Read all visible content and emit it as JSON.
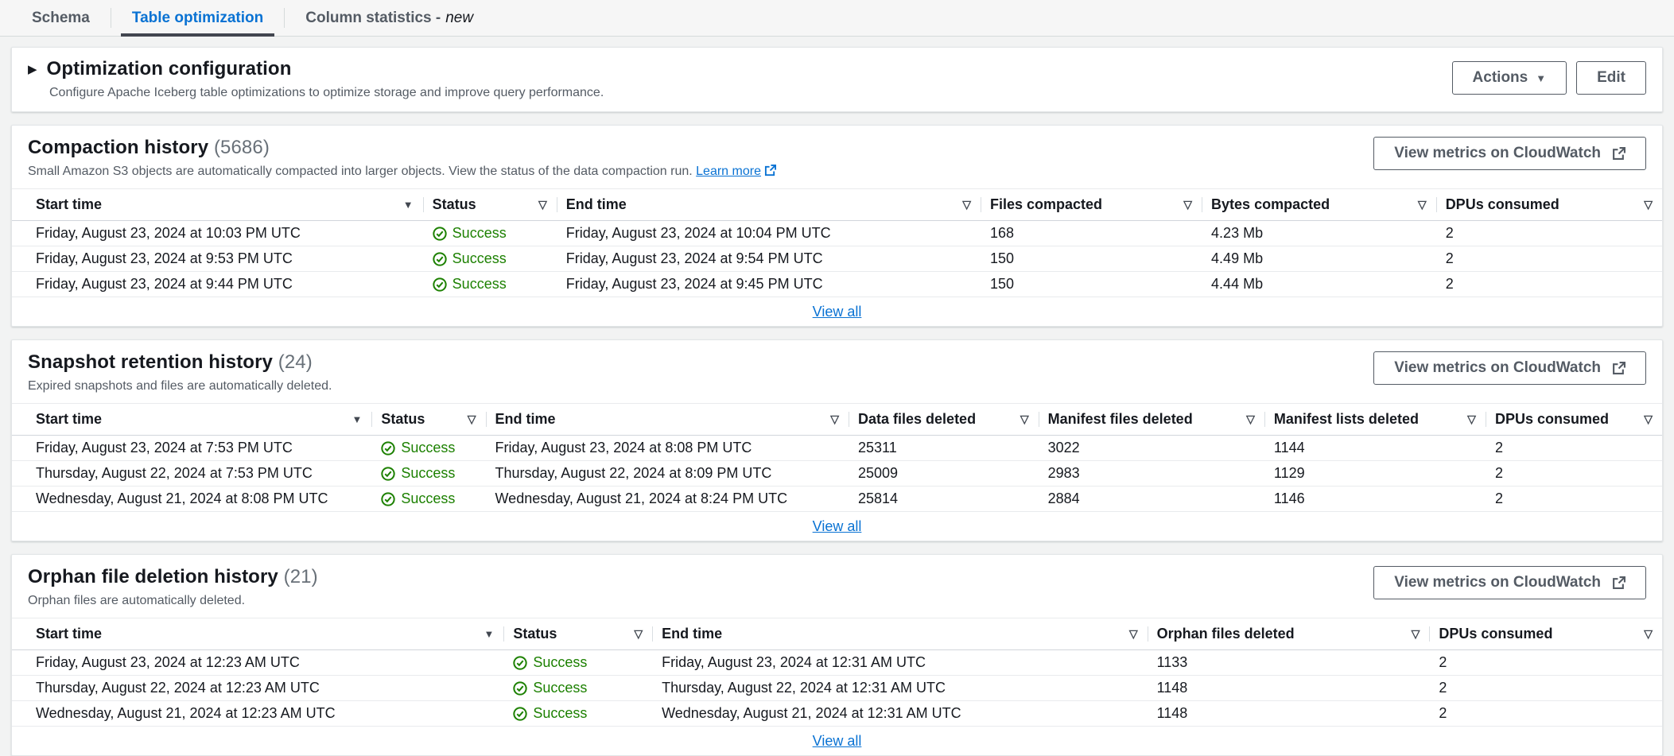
{
  "tabs": [
    {
      "label": "Schema"
    },
    {
      "label": "Table optimization"
    },
    {
      "label": "Column statistics -",
      "suffix": "new"
    }
  ],
  "config": {
    "title": "Optimization configuration",
    "description": "Configure Apache Iceberg table optimizations to optimize storage and improve query performance.",
    "actions_label": "Actions",
    "edit_label": "Edit"
  },
  "metrics_button_label": "View metrics on CloudWatch",
  "view_all_label": "View all",
  "colors": {
    "link_blue": "#0972d3",
    "success_green": "#1d8102",
    "active_tab_underline": "#424650"
  },
  "sections": [
    {
      "title": "Compaction history",
      "count": "(5686)",
      "description": "Small Amazon S3 objects are automatically compacted into larger objects. View the status of the data compaction run.",
      "learn_more_label": "Learn more",
      "columns": [
        {
          "label": "Start time",
          "indicator": "sort-desc"
        },
        {
          "label": "Status",
          "indicator": "filter"
        },
        {
          "label": "End time",
          "indicator": "filter"
        },
        {
          "label": "Files compacted",
          "indicator": "filter"
        },
        {
          "label": "Bytes compacted",
          "indicator": "filter"
        },
        {
          "label": "DPUs consumed",
          "indicator": "filter"
        }
      ],
      "rows": [
        [
          "Friday, August 23, 2024 at 10:03 PM UTC",
          "Success",
          "Friday, August 23, 2024 at 10:04 PM UTC",
          "168",
          "4.23 Mb",
          "2"
        ],
        [
          "Friday, August 23, 2024 at 9:53 PM UTC",
          "Success",
          "Friday, August 23, 2024 at 9:54 PM UTC",
          "150",
          "4.49 Mb",
          "2"
        ],
        [
          "Friday, August 23, 2024 at 9:44 PM UTC",
          "Success",
          "Friday, August 23, 2024 at 9:45 PM UTC",
          "150",
          "4.44 Mb",
          "2"
        ]
      ]
    },
    {
      "title": "Snapshot retention history",
      "count": "(24)",
      "description": "Expired snapshots and files are automatically deleted.",
      "columns": [
        {
          "label": "Start time",
          "indicator": "sort-desc"
        },
        {
          "label": "Status",
          "indicator": "filter"
        },
        {
          "label": "End time",
          "indicator": "filter"
        },
        {
          "label": "Data files deleted",
          "indicator": "filter"
        },
        {
          "label": "Manifest files deleted",
          "indicator": "filter"
        },
        {
          "label": "Manifest lists deleted",
          "indicator": "filter"
        },
        {
          "label": "DPUs consumed",
          "indicator": "filter"
        }
      ],
      "rows": [
        [
          "Friday, August 23, 2024 at 7:53 PM UTC",
          "Success",
          "Friday, August 23, 2024 at 8:08 PM UTC",
          "25311",
          "3022",
          "1144",
          "2"
        ],
        [
          "Thursday, August 22, 2024 at 7:53 PM UTC",
          "Success",
          "Thursday, August 22, 2024 at 8:09 PM UTC",
          "25009",
          "2983",
          "1129",
          "2"
        ],
        [
          "Wednesday, August 21, 2024 at 8:08 PM UTC",
          "Success",
          "Wednesday, August 21, 2024 at 8:24 PM UTC",
          "25814",
          "2884",
          "1146",
          "2"
        ]
      ]
    },
    {
      "title": "Orphan file deletion history",
      "count": "(21)",
      "description": "Orphan files are automatically deleted.",
      "columns": [
        {
          "label": "Start time",
          "indicator": "sort-desc"
        },
        {
          "label": "Status",
          "indicator": "filter"
        },
        {
          "label": "End time",
          "indicator": "filter"
        },
        {
          "label": "Orphan files deleted",
          "indicator": "filter"
        },
        {
          "label": "DPUs consumed",
          "indicator": "filter"
        }
      ],
      "rows": [
        [
          "Friday, August 23, 2024 at 12:23 AM UTC",
          "Success",
          "Friday, August 23, 2024 at 12:31 AM UTC",
          "1133",
          "2"
        ],
        [
          "Thursday, August 22, 2024 at 12:23 AM UTC",
          "Success",
          "Thursday, August 22, 2024 at 12:31 AM UTC",
          "1148",
          "2"
        ],
        [
          "Wednesday, August 21, 2024 at 12:23 AM UTC",
          "Success",
          "Wednesday, August 21, 2024 at 12:31 AM UTC",
          "1148",
          "2"
        ]
      ]
    }
  ]
}
